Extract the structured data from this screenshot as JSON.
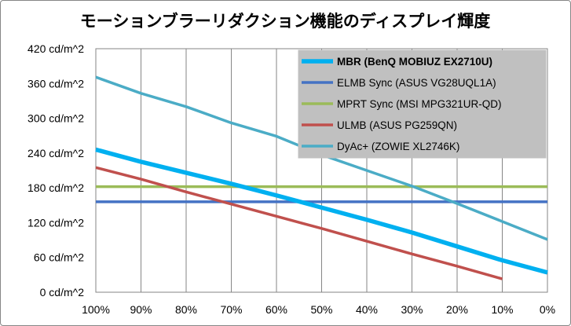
{
  "chart_data": {
    "type": "line",
    "title": "モーションブラーリダクション機能のディスプレイ輝度",
    "xlabel": "",
    "ylabel": "",
    "x": [
      100,
      90,
      80,
      70,
      60,
      50,
      40,
      30,
      20,
      10,
      0
    ],
    "x_tick_labels": [
      "100%",
      "90%",
      "80%",
      "70%",
      "60%",
      "50%",
      "40%",
      "30%",
      "20%",
      "10%",
      "0%"
    ],
    "xlim": [
      100,
      0
    ],
    "y_ticks": [
      0,
      60,
      120,
      180,
      240,
      300,
      360,
      420
    ],
    "y_tick_labels": [
      "0 cd/m^2",
      "60 cd/m^2",
      "120 cd/m^2",
      "180 cd/m^2",
      "240 cd/m^2",
      "300 cd/m^2",
      "360 cd/m^2",
      "420 cd/m^2"
    ],
    "ylim": [
      0,
      420
    ],
    "grid": "vertical",
    "legend_position": "top-right",
    "series": [
      {
        "name": "MBR (BenQ MOBIUZ EX2710U)",
        "color": "#00b0f0",
        "emphasis": true,
        "x": [
          100,
          90,
          80,
          70,
          60,
          50,
          40,
          30,
          20,
          10,
          0
        ],
        "values": [
          246,
          225,
          206,
          187,
          167,
          146,
          125,
          103,
          79,
          55,
          34
        ]
      },
      {
        "name": "ELMB Sync (ASUS VG28UQL1A)",
        "color": "#4472c4",
        "x": [
          100,
          90,
          80,
          70,
          60,
          50,
          40,
          30,
          20,
          10,
          0
        ],
        "values": [
          156,
          156,
          156,
          156,
          156,
          156,
          156,
          156,
          156,
          156,
          156
        ]
      },
      {
        "name": "MPRT Sync (MSI MPG321UR-QD)",
        "color": "#9bbb59",
        "x": [
          100,
          90,
          80,
          70,
          60,
          50,
          40,
          30,
          20,
          10,
          0
        ],
        "values": [
          182,
          182,
          182,
          182,
          182,
          182,
          182,
          182,
          182,
          182,
          182
        ]
      },
      {
        "name": "ULMB (ASUS PG259QN)",
        "color": "#c0504d",
        "x": [
          100,
          90,
          80,
          70,
          60,
          50,
          40,
          30,
          20,
          10
        ],
        "values": [
          215,
          195,
          173,
          152,
          131,
          110,
          88,
          66,
          45,
          23
        ]
      },
      {
        "name": "DyAc+ (ZOWIE XL2746K)",
        "color": "#4bacc6",
        "x": [
          100,
          90,
          80,
          70,
          60,
          50,
          40,
          30,
          20,
          10,
          0
        ],
        "values": [
          371,
          343,
          320,
          292,
          269,
          237,
          210,
          183,
          153,
          122,
          91
        ]
      }
    ]
  }
}
